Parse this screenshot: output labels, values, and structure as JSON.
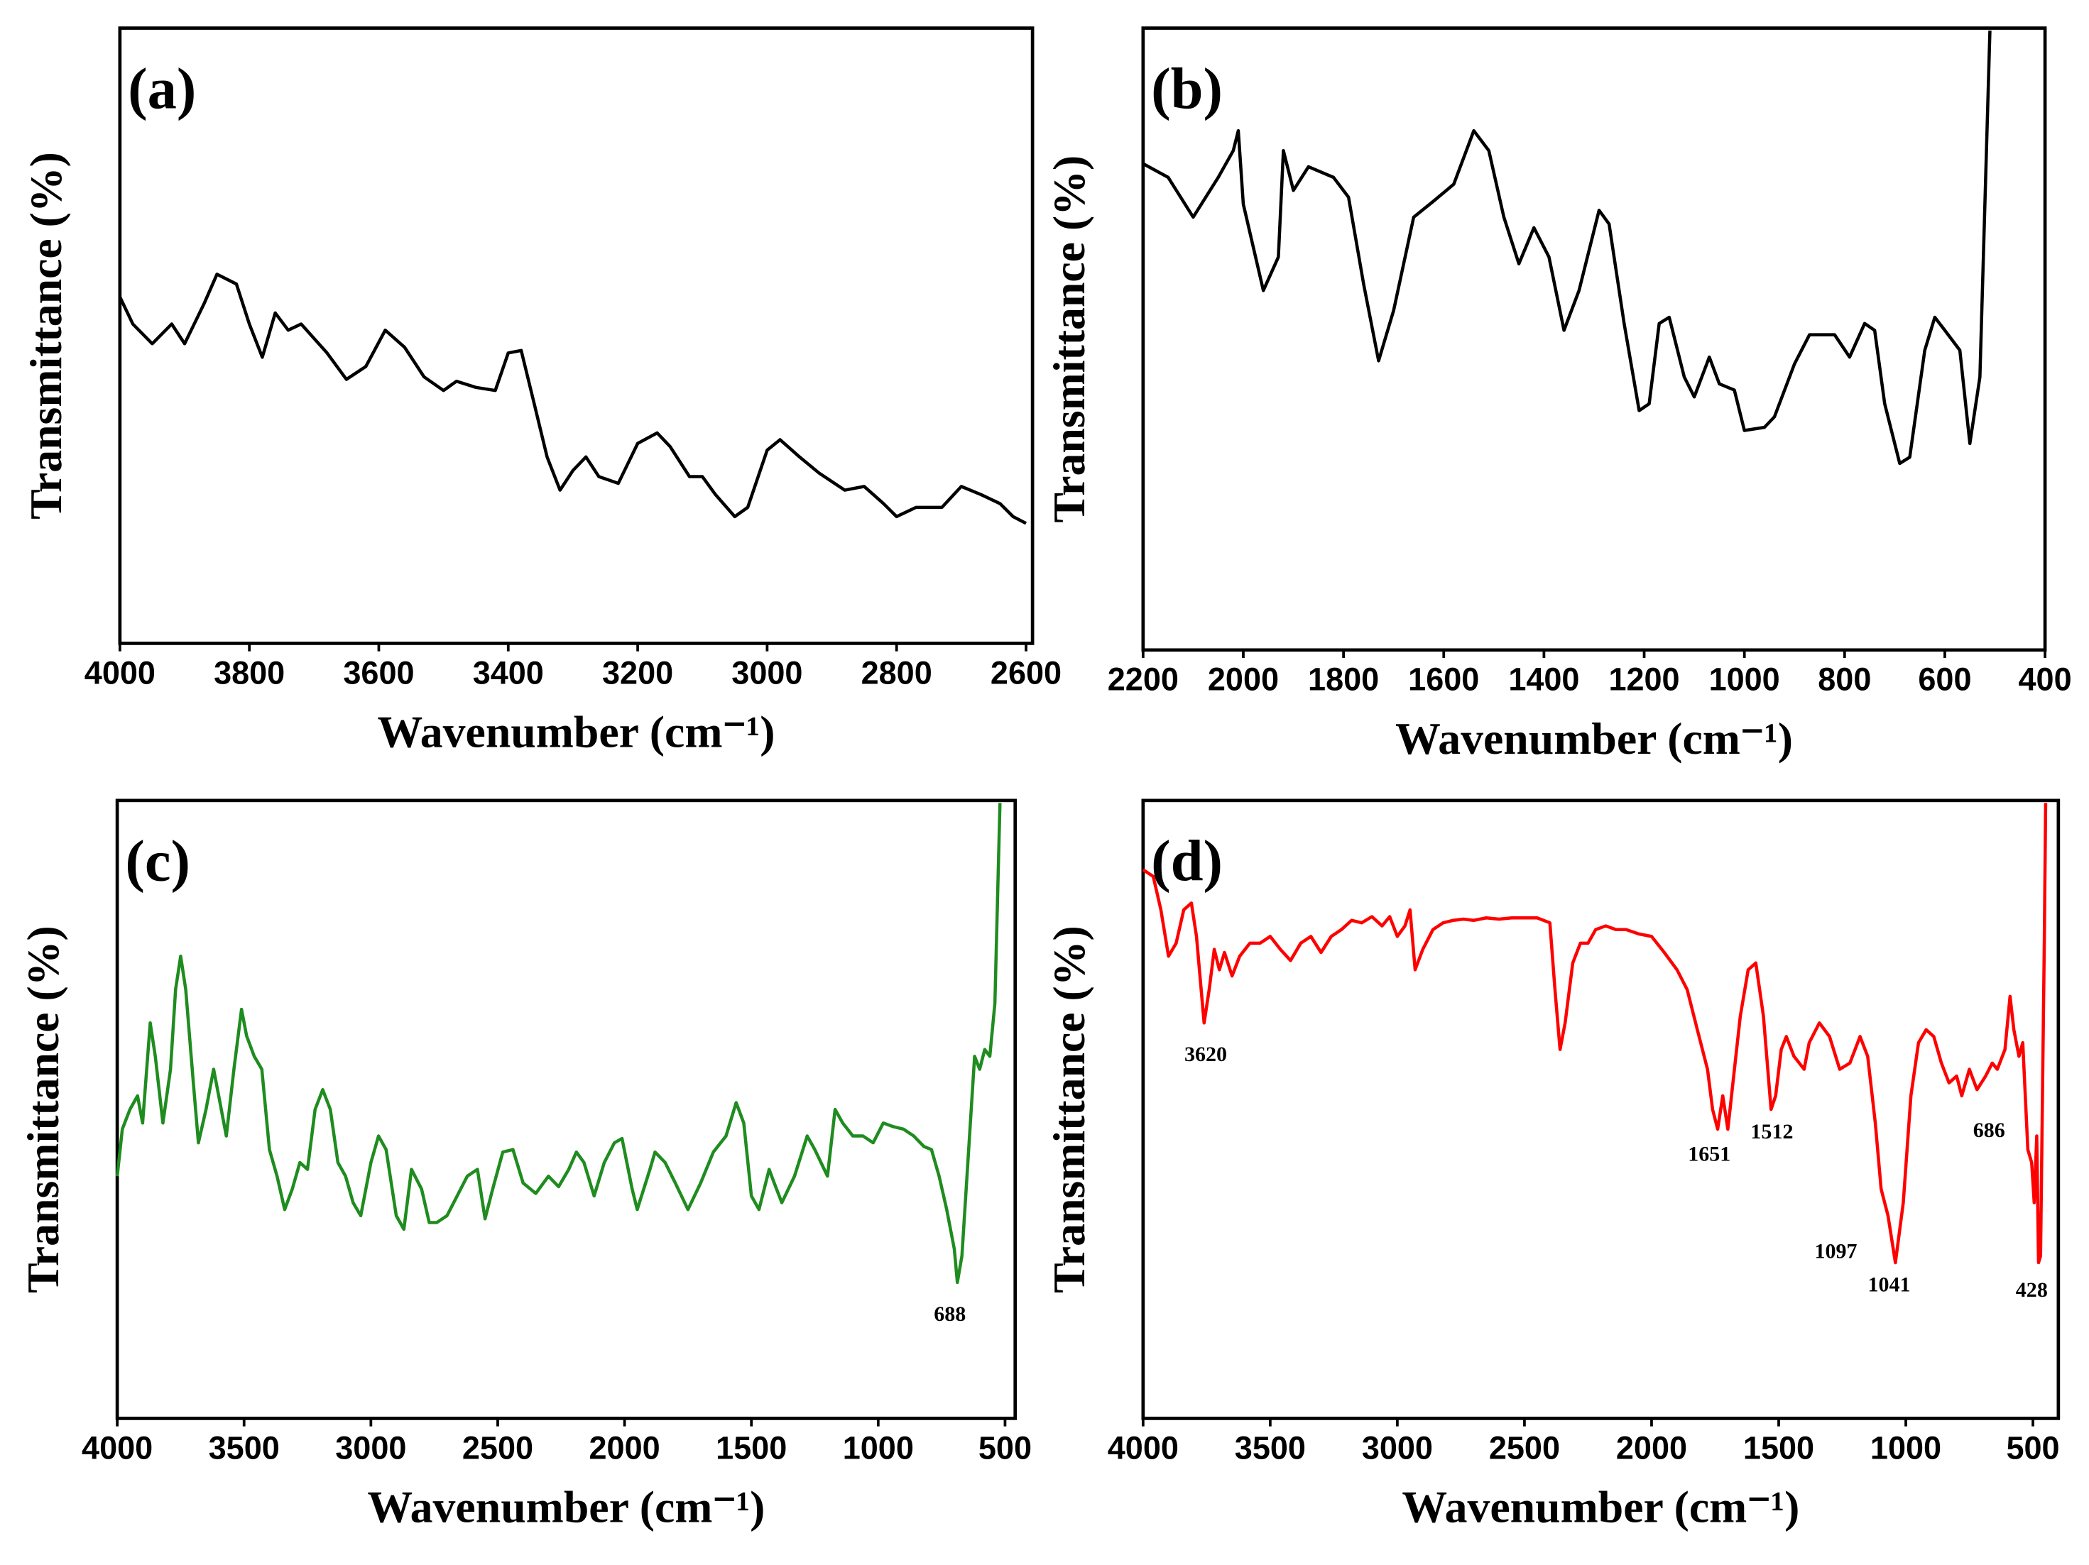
{
  "chart_data": [
    {
      "type": "line",
      "title": "(a)",
      "x_label": "Wavenumber (cm⁻¹)",
      "y_label": "Transmittance (%)",
      "color": "#000000",
      "xlim": [
        4000,
        2590
      ],
      "ylim": [
        0,
        100
      ],
      "xticks": [
        4000,
        3800,
        3600,
        3400,
        3200,
        3000,
        2800,
        2600
      ],
      "x": [
        4000,
        3980,
        3950,
        3920,
        3900,
        3870,
        3850,
        3820,
        3800,
        3780,
        3760,
        3740,
        3720,
        3680,
        3650,
        3620,
        3590,
        3560,
        3530,
        3500,
        3480,
        3450,
        3420,
        3400,
        3380,
        3360,
        3340,
        3320,
        3300,
        3280,
        3260,
        3230,
        3200,
        3170,
        3150,
        3120,
        3100,
        3080,
        3050,
        3030,
        3000,
        2980,
        2950,
        2920,
        2880,
        2850,
        2820,
        2800,
        2770,
        2730,
        2700,
        2670,
        2640,
        2620,
        2600
      ],
      "values": [
        56.3,
        51.9,
        48.7,
        51.9,
        48.7,
        55.2,
        60,
        58.4,
        51.9,
        46.5,
        53.7,
        50.9,
        51.9,
        47.2,
        42.9,
        45,
        50.9,
        48.1,
        43.3,
        41.1,
        42.6,
        41.6,
        41.1,
        47.2,
        47.6,
        39,
        30.3,
        24.9,
        28.1,
        30.3,
        27.1,
        26,
        32.5,
        34.2,
        32,
        27.1,
        27.1,
        24.2,
        20.6,
        22.1,
        31.4,
        33.1,
        30.3,
        27.7,
        24.9,
        25.5,
        22.7,
        20.6,
        22.1,
        22.1,
        25.5,
        24.2,
        22.7,
        20.6,
        19.5
      ]
    },
    {
      "type": "line",
      "title": "(b)",
      "x_label": "Wavenumber (cm⁻¹)",
      "y_label": "Transmittance (%)",
      "color": "#000000",
      "xlim": [
        2200,
        400
      ],
      "ylim": [
        0,
        100
      ],
      "xticks": [
        2200,
        2000,
        1800,
        1600,
        1400,
        1200,
        1000,
        800,
        600,
        400
      ],
      "x": [
        2200,
        2150,
        2100,
        2050,
        2020,
        2010,
        2000,
        1960,
        1930,
        1920,
        1900,
        1870,
        1820,
        1790,
        1760,
        1730,
        1700,
        1660,
        1620,
        1580,
        1540,
        1510,
        1480,
        1450,
        1420,
        1390,
        1360,
        1330,
        1290,
        1270,
        1240,
        1210,
        1190,
        1170,
        1150,
        1120,
        1100,
        1070,
        1050,
        1020,
        1000,
        960,
        940,
        900,
        870,
        820,
        790,
        760,
        740,
        720,
        690,
        670,
        640,
        620,
        600,
        570,
        550,
        530,
        510
      ],
      "values": [
        78.2,
        76,
        69.6,
        76,
        80.3,
        83.5,
        71.7,
        57.8,
        63.2,
        80.3,
        73.9,
        77.7,
        76,
        72.8,
        58.9,
        46.5,
        54.6,
        69.6,
        72.2,
        74.9,
        83.5,
        80.3,
        69.6,
        62.1,
        67.9,
        63.2,
        51.4,
        57.8,
        70.7,
        68.5,
        52.5,
        38.5,
        39.6,
        52.5,
        53.5,
        43.9,
        40.7,
        47.1,
        42.8,
        41.8,
        35.3,
        35.8,
        37.5,
        46,
        50.7,
        50.7,
        47.1,
        52.5,
        51.4,
        39.6,
        30,
        31,
        48.2,
        53.5,
        51.4,
        48.2,
        33.2,
        43.9,
        99.6
      ]
    },
    {
      "type": "line",
      "title": "(c)",
      "x_label": "Wavenumber (cm⁻¹)",
      "y_label": "Transmittance (%)",
      "color": "#1f8c1f",
      "xlim": [
        4000,
        460
      ],
      "ylim": [
        0,
        100
      ],
      "xticks": [
        4000,
        3500,
        3000,
        2500,
        2000,
        1500,
        1000,
        500
      ],
      "annotations": [
        "688"
      ],
      "x": [
        4000,
        3980,
        3950,
        3920,
        3900,
        3870,
        3850,
        3820,
        3790,
        3770,
        3750,
        3730,
        3700,
        3680,
        3650,
        3620,
        3600,
        3570,
        3540,
        3510,
        3490,
        3460,
        3430,
        3400,
        3370,
        3340,
        3310,
        3280,
        3250,
        3220,
        3190,
        3160,
        3130,
        3100,
        3070,
        3040,
        3000,
        2970,
        2940,
        2900,
        2870,
        2840,
        2800,
        2770,
        2740,
        2700,
        2660,
        2620,
        2580,
        2550,
        2520,
        2480,
        2440,
        2400,
        2350,
        2300,
        2260,
        2220,
        2190,
        2160,
        2120,
        2080,
        2040,
        2010,
        1970,
        1950,
        1900,
        1880,
        1840,
        1800,
        1750,
        1700,
        1650,
        1600,
        1560,
        1530,
        1500,
        1470,
        1430,
        1410,
        1380,
        1330,
        1280,
        1250,
        1200,
        1170,
        1140,
        1100,
        1060,
        1020,
        980,
        940,
        900,
        860,
        820,
        790,
        760,
        730,
        700,
        688,
        670,
        640,
        620,
        600,
        580,
        560,
        540,
        520
      ],
      "values": [
        39.2,
        46.8,
        50,
        52.2,
        47.8,
        64,
        58.6,
        47.8,
        56.5,
        69.4,
        74.8,
        69.4,
        54.3,
        44.6,
        50,
        56.5,
        52.2,
        45.7,
        56.5,
        66.2,
        61.9,
        58.6,
        56.5,
        43.5,
        39.2,
        33.8,
        37.1,
        41.4,
        40.3,
        50,
        53.2,
        50,
        41.4,
        39.2,
        34.9,
        32.8,
        41.4,
        45.7,
        43.5,
        32.8,
        30.6,
        40.3,
        37.1,
        31.7,
        31.7,
        32.8,
        36,
        39.2,
        40.3,
        32.3,
        37.1,
        43.1,
        43.5,
        38.1,
        36.4,
        39.2,
        37.5,
        40.3,
        43.1,
        41.4,
        36,
        41.4,
        44.6,
        45.3,
        37.1,
        33.8,
        40.3,
        43.1,
        41.4,
        38.1,
        33.8,
        38.1,
        43.1,
        45.7,
        51.1,
        47.8,
        36,
        33.8,
        40.3,
        38.1,
        34.9,
        39.2,
        45.7,
        43.5,
        39.2,
        50,
        47.8,
        45.7,
        45.7,
        44.6,
        47.8,
        47.2,
        46.8,
        45.7,
        44,
        43.5,
        39.2,
        33.8,
        27.4,
        22,
        26.3,
        45.7,
        58.6,
        56.5,
        59.7,
        58.6,
        67.2,
        99.6
      ]
    },
    {
      "type": "line",
      "title": "(d)",
      "x_label": "Wavenumber (cm⁻¹)",
      "y_label": "Transmittance (%)",
      "color": "#ff0000",
      "xlim": [
        4000,
        400
      ],
      "ylim": [
        0,
        100
      ],
      "xticks": [
        4000,
        3500,
        3000,
        2500,
        2000,
        1500,
        1000,
        500
      ],
      "annotations": [
        "3620",
        "1651",
        "1512",
        "1097",
        "1041",
        "686",
        "428"
      ],
      "x": [
        4000,
        3960,
        3930,
        3900,
        3870,
        3840,
        3810,
        3790,
        3760,
        3740,
        3720,
        3700,
        3680,
        3650,
        3620,
        3580,
        3540,
        3500,
        3460,
        3420,
        3380,
        3340,
        3300,
        3260,
        3220,
        3180,
        3140,
        3100,
        3060,
        3030,
        3000,
        2970,
        2950,
        2930,
        2900,
        2860,
        2820,
        2780,
        2740,
        2700,
        2650,
        2600,
        2550,
        2500,
        2450,
        2400,
        2380,
        2360,
        2340,
        2310,
        2280,
        2250,
        2220,
        2180,
        2140,
        2100,
        2050,
        2000,
        1950,
        1900,
        1860,
        1820,
        1780,
        1760,
        1740,
        1720,
        1700,
        1680,
        1651,
        1620,
        1590,
        1560,
        1530,
        1512,
        1490,
        1470,
        1440,
        1400,
        1380,
        1340,
        1300,
        1260,
        1220,
        1180,
        1150,
        1120,
        1097,
        1070,
        1041,
        1010,
        980,
        950,
        920,
        890,
        860,
        830,
        800,
        780,
        750,
        720,
        686,
        660,
        640,
        610,
        590,
        575,
        555,
        540,
        520,
        505,
        495,
        485,
        478,
        470,
        455,
        450
      ],
      "values": [
        88.8,
        87.7,
        82.3,
        74.8,
        76.9,
        82.3,
        83.4,
        78,
        64,
        69.4,
        75.9,
        72.6,
        75.4,
        71.6,
        74.8,
        76.9,
        76.9,
        78,
        75.9,
        74.1,
        76.9,
        78,
        75.4,
        78,
        79.1,
        80.6,
        80.2,
        81.2,
        79.7,
        81.2,
        78,
        79.7,
        82.3,
        72.6,
        75.9,
        79.1,
        80.2,
        80.6,
        80.8,
        80.6,
        81,
        80.8,
        81,
        81,
        81,
        80.2,
        69.4,
        59.7,
        64,
        73.7,
        76.9,
        76.9,
        79.1,
        79.7,
        79.1,
        79.1,
        78.4,
        78,
        75.4,
        72.6,
        69.4,
        62.9,
        56.5,
        50,
        46.8,
        52.2,
        46.8,
        54.3,
        65.1,
        72.6,
        73.7,
        65.1,
        50,
        52.2,
        59.7,
        61.8,
        58.6,
        56.5,
        60.8,
        64,
        61.8,
        56.5,
        57.5,
        61.8,
        58.6,
        47.8,
        37.1,
        32.8,
        25.2,
        34.9,
        52.2,
        60.8,
        62.9,
        61.8,
        57.5,
        54.3,
        55.4,
        52.2,
        56.5,
        53.2,
        55.4,
        57.5,
        56.5,
        59.7,
        68.3,
        62.9,
        58.6,
        60.8,
        43.5,
        41.4,
        34.9,
        45.7,
        25.2,
        26.3,
        78,
        99.6
      ]
    }
  ]
}
